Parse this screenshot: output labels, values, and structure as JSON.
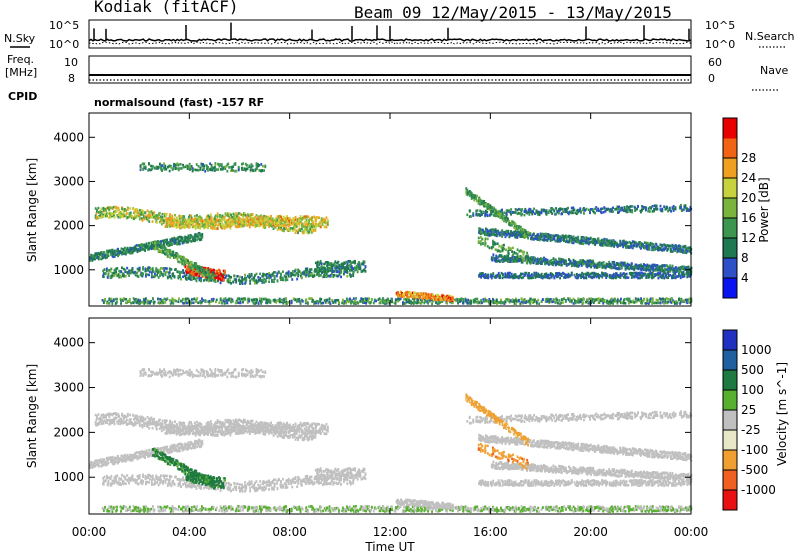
{
  "header": {
    "station": "Kodiak (fitACF)",
    "beam_date": "Beam 09 12/May/2015 - 13/May/2015"
  },
  "top_panels": {
    "nsky_label": "N.Sky",
    "nsearch_label": "N.Search",
    "left_ticks": [
      "10^5",
      "10^0"
    ],
    "right_ticks": [
      "10^5",
      "10^0"
    ],
    "freq_label_1": "Freq.",
    "freq_label_2": "[MHz]",
    "freq_ticks": [
      "10",
      "8"
    ],
    "nave_label": "Nave",
    "nave_ticks": [
      "60",
      "0"
    ],
    "cpid_label": "CPID",
    "cpid_text": "normalsound (fast) -157 RF"
  },
  "colors": {
    "power_scale": [
      "#0a14f0",
      "#2d50c8",
      "#1e7850",
      "#3c9650",
      "#7ab43c",
      "#c8d23c",
      "#f0a020",
      "#f06414",
      "#e60000"
    ],
    "velocity_scale": [
      "#2030c0",
      "#2060a0",
      "#1e7a40",
      "#58b030",
      "#c0c0c0",
      "#e8e8c8",
      "#f0a030",
      "#f06020",
      "#e81010"
    ]
  },
  "chart_data": [
    {
      "type": "heatmap",
      "panel": "power",
      "ylabel": "Slant Range [km]",
      "yticks": [
        "1000",
        "2000",
        "3000",
        "4000"
      ],
      "ylim": [
        180,
        4550
      ],
      "xlim": [
        0,
        24
      ],
      "colorbar_label": "Power [dB]",
      "colorbar_ticks": [
        "4",
        "8",
        "12",
        "16",
        "20",
        "24",
        "28"
      ],
      "crange": [
        0,
        30
      ]
    },
    {
      "type": "heatmap",
      "panel": "velocity",
      "ylabel": "Slant Range [km]",
      "yticks": [
        "1000",
        "2000",
        "3000",
        "4000"
      ],
      "ylim": [
        180,
        4550
      ],
      "xlim": [
        0,
        24
      ],
      "colorbar_label": "Velocity [m s^-1]",
      "colorbar_ticks": [
        "1000",
        "500",
        "100",
        "25",
        "-25",
        "-100",
        "-500",
        "-1000"
      ]
    }
  ],
  "x_axis": {
    "ticks": [
      "00:00",
      "04:00",
      "08:00",
      "12:00",
      "16:00",
      "20:00",
      "00:00"
    ],
    "label": "Time UT"
  }
}
